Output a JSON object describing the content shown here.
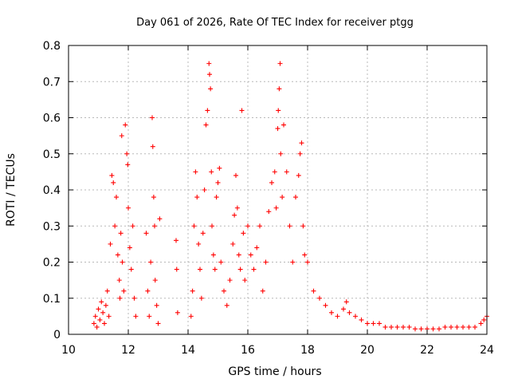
{
  "chart_data": {
    "type": "scatter",
    "title": "Day 061 of 2026, Rate Of TEC Index for receiver ptgg",
    "xlabel": "GPS time / hours",
    "ylabel": "ROTI / TECUs",
    "xlim": [
      10,
      24
    ],
    "ylim": [
      0,
      0.8
    ],
    "xticks": [
      "10",
      "12",
      "14",
      "16",
      "18",
      "20",
      "22",
      "24"
    ],
    "yticks": [
      "0",
      "0.1",
      "0.2",
      "0.3",
      "0.4",
      "0.5",
      "0.6",
      "0.7",
      "0.8"
    ],
    "grid": true,
    "marker": "plus",
    "color": "#ff0000",
    "series": [
      {
        "x": [
          10.85,
          10.9,
          10.95,
          11.0,
          11.05,
          11.1,
          11.15,
          11.2,
          11.25,
          11.3,
          11.35,
          11.4,
          11.45,
          11.5,
          11.55,
          11.6,
          11.65,
          11.7,
          11.72,
          11.75,
          11.78,
          11.8,
          11.85,
          11.9,
          11.95,
          11.98,
          12.0,
          12.05,
          12.1,
          12.15,
          12.2,
          12.25,
          12.6,
          12.65,
          12.7,
          12.75,
          12.8,
          12.82,
          12.85,
          12.88,
          12.9,
          12.95,
          13.0,
          13.05,
          13.6,
          13.62,
          13.65,
          14.1,
          14.15,
          14.2,
          14.25,
          14.3,
          14.35,
          14.4,
          14.45,
          14.5,
          14.55,
          14.6,
          14.65,
          14.7,
          14.72,
          14.75,
          14.78,
          14.8,
          14.85,
          14.9,
          14.95,
          15.0,
          15.05,
          15.1,
          15.2,
          15.3,
          15.4,
          15.5,
          15.55,
          15.6,
          15.65,
          15.7,
          15.75,
          15.8,
          15.85,
          15.9,
          16.0,
          16.1,
          16.2,
          16.3,
          16.4,
          16.5,
          16.6,
          16.7,
          16.8,
          16.9,
          16.95,
          17.0,
          17.02,
          17.05,
          17.08,
          17.1,
          17.15,
          17.2,
          17.3,
          17.4,
          17.5,
          17.6,
          17.7,
          17.75,
          17.8,
          17.85,
          17.9,
          18.0,
          18.2,
          18.4,
          18.6,
          18.8,
          19.0,
          19.2,
          19.3,
          19.4,
          19.6,
          19.8,
          20.0,
          20.2,
          20.4,
          20.6,
          20.8,
          21.0,
          21.2,
          21.4,
          21.6,
          21.8,
          22.0,
          22.2,
          22.4,
          22.6,
          22.8,
          23.0,
          23.2,
          23.4,
          23.6,
          23.8,
          23.9,
          24.0
        ],
        "y": [
          0.03,
          0.05,
          0.02,
          0.07,
          0.04,
          0.09,
          0.06,
          0.03,
          0.08,
          0.12,
          0.05,
          0.25,
          0.44,
          0.42,
          0.3,
          0.38,
          0.22,
          0.15,
          0.1,
          0.28,
          0.55,
          0.2,
          0.12,
          0.58,
          0.5,
          0.47,
          0.35,
          0.24,
          0.18,
          0.3,
          0.1,
          0.05,
          0.28,
          0.12,
          0.05,
          0.2,
          0.6,
          0.52,
          0.38,
          0.3,
          0.15,
          0.08,
          0.03,
          0.32,
          0.26,
          0.18,
          0.06,
          0.05,
          0.12,
          0.3,
          0.45,
          0.38,
          0.25,
          0.18,
          0.1,
          0.28,
          0.4,
          0.58,
          0.62,
          0.75,
          0.72,
          0.68,
          0.45,
          0.3,
          0.22,
          0.18,
          0.38,
          0.42,
          0.46,
          0.2,
          0.12,
          0.08,
          0.15,
          0.25,
          0.33,
          0.44,
          0.35,
          0.22,
          0.18,
          0.62,
          0.28,
          0.15,
          0.3,
          0.22,
          0.18,
          0.24,
          0.3,
          0.12,
          0.2,
          0.34,
          0.42,
          0.45,
          0.35,
          0.57,
          0.62,
          0.68,
          0.75,
          0.5,
          0.38,
          0.58,
          0.45,
          0.3,
          0.2,
          0.38,
          0.44,
          0.5,
          0.53,
          0.3,
          0.22,
          0.2,
          0.12,
          0.1,
          0.08,
          0.06,
          0.05,
          0.07,
          0.09,
          0.06,
          0.05,
          0.04,
          0.03,
          0.03,
          0.03,
          0.02,
          0.02,
          0.02,
          0.02,
          0.02,
          0.015,
          0.015,
          0.015,
          0.015,
          0.015,
          0.02,
          0.02,
          0.02,
          0.02,
          0.02,
          0.02,
          0.03,
          0.04,
          0.05
        ]
      }
    ]
  }
}
